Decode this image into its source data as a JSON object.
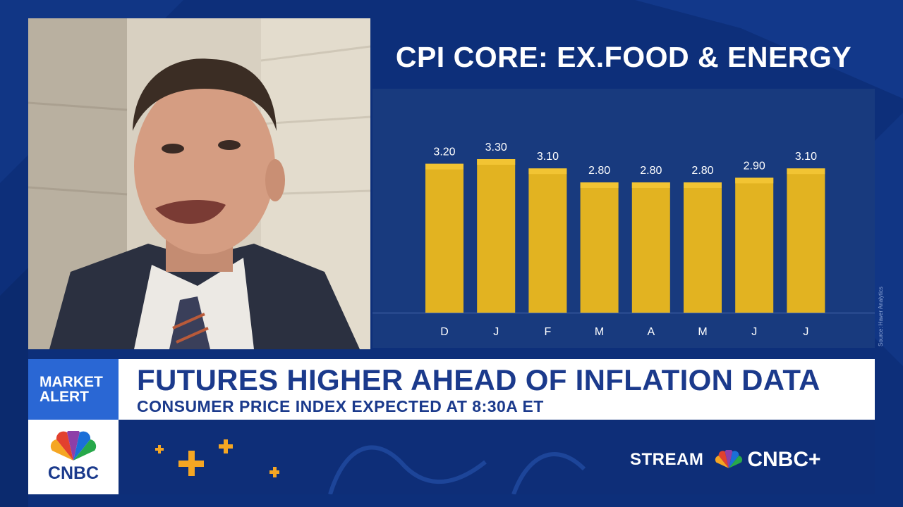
{
  "chart_data": {
    "type": "bar",
    "title": "CPI CORE: EX.FOOD & ENERGY",
    "categories": [
      "D",
      "J",
      "F",
      "M",
      "A",
      "M",
      "J",
      "J"
    ],
    "values": [
      3.2,
      3.3,
      3.1,
      2.8,
      2.8,
      2.8,
      2.9,
      3.1
    ],
    "value_labels": [
      "3.20",
      "3.30",
      "3.10",
      "2.80",
      "2.80",
      "2.80",
      "2.90",
      "3.10"
    ],
    "source": "Source: Haver Analytics",
    "bar_color": "#e2b321",
    "bar_top_color": "#f2c433",
    "grid": false
  },
  "lower_third": {
    "alert_line1": "MARKET",
    "alert_line2": "ALERT",
    "headline": "FUTURES HIGHER AHEAD OF INFLATION DATA",
    "subheadline": "CONSUMER PRICE INDEX EXPECTED AT 8:30A ET",
    "logo_text": "CNBC",
    "stream_label": "STREAM",
    "cnbc_plus": "CNBC+"
  },
  "colors": {
    "background": "#0d2f7a",
    "panel": "#183a7e",
    "alert_blue": "#2a67d4",
    "headline_text": "#1b3a8c",
    "accent_orange": "#f5a623"
  }
}
